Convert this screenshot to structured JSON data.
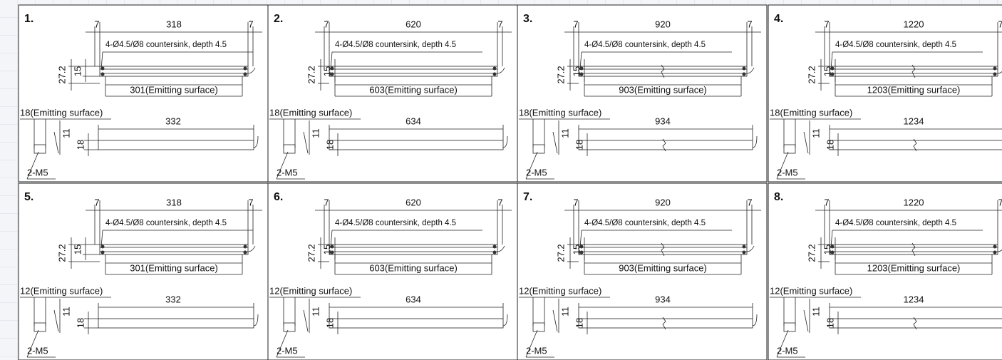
{
  "panels": [
    {
      "number": "1.",
      "edge_left": "7",
      "width": "318",
      "edge_right": "7",
      "hole_note": "4-Ø4.5/Ø8 countersink, depth 4.5",
      "height": "27.2",
      "pitch": "15",
      "emitting_length": "301(Emitting surface)",
      "emitting_width": "18(Emitting surface)",
      "length": "332",
      "side_height": "11",
      "side_width": "18",
      "thread": "2-M5"
    },
    {
      "number": "2.",
      "edge_left": "7",
      "width": "620",
      "edge_right": "7",
      "hole_note": "4-Ø4.5/Ø8 countersink, depth 4.5",
      "height": "27.2",
      "pitch": "15",
      "emitting_length": "603(Emitting surface)",
      "emitting_width": "18(Emitting surface)",
      "length": "634",
      "side_height": "11",
      "side_width": "18",
      "thread": "2-M5"
    },
    {
      "number": "3.",
      "edge_left": "7",
      "width": "920",
      "edge_right": "7",
      "hole_note": "4-Ø4.5/Ø8 countersink, depth 4.5",
      "height": "27.2",
      "pitch": "15",
      "emitting_length": "903(Emitting surface)",
      "emitting_width": "18(Emitting surface)",
      "length": "934",
      "side_height": "11",
      "side_width": "18",
      "thread": "2-M5"
    },
    {
      "number": "4.",
      "edge_left": "7",
      "width": "1220",
      "edge_right": "7",
      "hole_note": "4-Ø4.5/Ø8 countersink, depth 4.5",
      "height": "27.2",
      "pitch": "15",
      "emitting_length": "1203(Emitting surface)",
      "emitting_width": "18(Emitting surface)",
      "length": "1234",
      "side_height": "11",
      "side_width": "18",
      "thread": "2-M5"
    },
    {
      "number": "5.",
      "edge_left": "7",
      "width": "318",
      "edge_right": "7",
      "hole_note": "4-Ø4.5/Ø8 countersink, depth 4.5",
      "height": "27.2",
      "pitch": "15",
      "emitting_length": "301(Emitting surface)",
      "emitting_width": "12(Emitting surface)",
      "length": "332",
      "side_height": "11",
      "side_width": "18",
      "thread": "2-M5"
    },
    {
      "number": "6.",
      "edge_left": "7",
      "width": "620",
      "edge_right": "7",
      "hole_note": "4-Ø4.5/Ø8 countersink, depth 4.5",
      "height": "27.2",
      "pitch": "15",
      "emitting_length": "603(Emitting surface)",
      "emitting_width": "12(Emitting surface)",
      "length": "634",
      "side_height": "11",
      "side_width": "18",
      "thread": "2-M5"
    },
    {
      "number": "7.",
      "edge_left": "7",
      "width": "920",
      "edge_right": "7",
      "hole_note": "4-Ø4.5/Ø8 countersink, depth 4.5",
      "height": "27.2",
      "pitch": "15",
      "emitting_length": "903(Emitting surface)",
      "emitting_width": "12(Emitting surface)",
      "length": "934",
      "side_height": "11",
      "side_width": "18",
      "thread": "2-M5"
    },
    {
      "number": "8.",
      "edge_left": "7",
      "width": "1220",
      "edge_right": "7",
      "hole_note": "4-Ø4.5/Ø8 countersink, depth 4.5",
      "height": "27.2",
      "pitch": "15",
      "emitting_length": "1203(Emitting surface)",
      "emitting_width": "12(Emitting surface)",
      "length": "1234",
      "side_height": "11",
      "side_width": "18",
      "thread": "2-M5"
    }
  ]
}
